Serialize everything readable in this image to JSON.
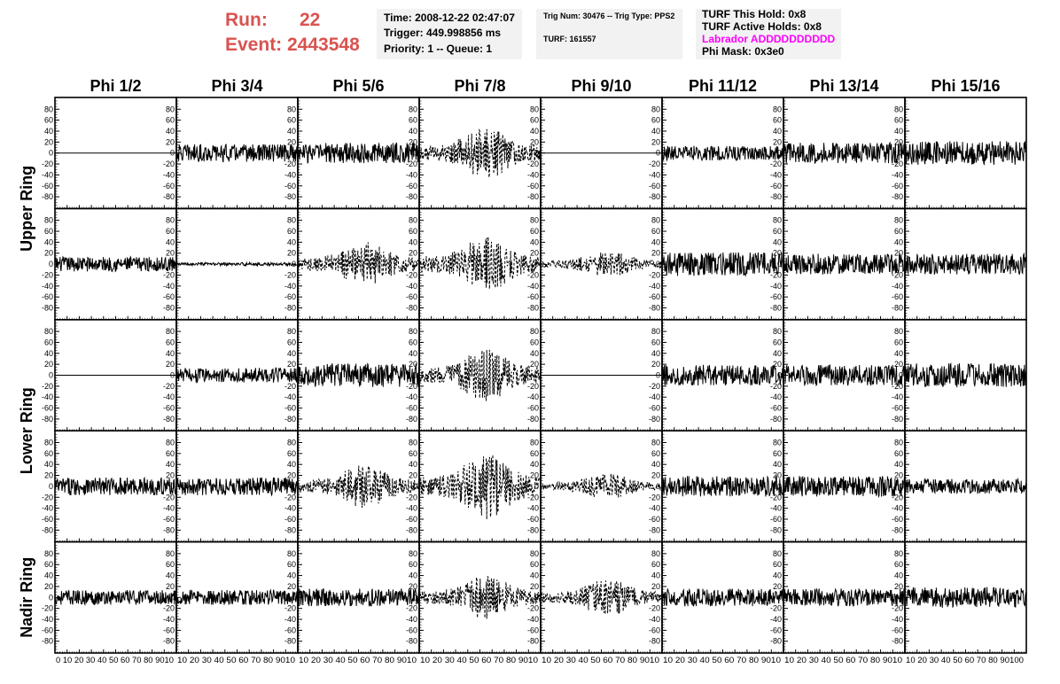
{
  "header": {
    "run_label": "Run:",
    "run_value": "22",
    "event_label": "Event:",
    "event_value": "2443548",
    "time_line": "Time: 2008-12-22 02:47:07",
    "trigger_line": "Trigger: 449.998856 ms",
    "priority_line": "Priority: 1 -- Queue: 1",
    "trig_num_line": "Trig Num: 30476 -- Trig Type: PPS2",
    "turf_line": "TURF: 161557",
    "turf_hold_line": "TURF This Hold: 0x8",
    "turf_active_line": "TURF Active Holds: 0x8",
    "labrador_line": "Labrador ADDDDDDDDDD",
    "phi_mask_line": "Phi Mask: 0x3e0",
    "labrador_color": "#ff00ff",
    "run_color": "#d9534f"
  },
  "chart_data": {
    "type": "line",
    "columns": [
      "Phi 1/2",
      "Phi 3/4",
      "Phi 5/6",
      "Phi 7/8",
      "Phi 9/10",
      "Phi 11/12",
      "Phi 13/14",
      "Phi 15/16"
    ],
    "ring_labels": [
      {
        "text": "Upper Ring",
        "rows": [
          0,
          1
        ]
      },
      {
        "text": "Lower Ring",
        "rows": [
          2,
          3
        ]
      },
      {
        "text": "Nadir Ring",
        "rows": [
          4
        ]
      }
    ],
    "ylim": [
      -95,
      95
    ],
    "yticks": [
      -80,
      -60,
      -40,
      -20,
      0,
      20,
      40,
      60,
      80
    ],
    "xlim": [
      0,
      100
    ],
    "xticks": [
      0,
      10,
      20,
      30,
      40,
      50,
      60,
      70,
      80,
      90,
      100
    ],
    "x_tick_labels_first": "0 10 20 30 40 50 60 70 80 9010",
    "x_tick_labels": "10 20 30 40 50 60 70 80 9010",
    "x_tick_labels_last": "10 20 30 40 50 60 70 80 90100",
    "line_color": "#000000",
    "samples_per_waveform": 260,
    "waveform_amplitudes": [
      [
        0,
        12,
        14,
        28,
        0,
        10,
        14,
        16
      ],
      [
        10,
        2,
        24,
        30,
        14,
        16,
        14,
        14
      ],
      [
        0,
        10,
        16,
        28,
        0,
        14,
        14,
        16
      ],
      [
        12,
        12,
        24,
        36,
        14,
        14,
        14,
        10
      ],
      [
        10,
        10,
        12,
        24,
        20,
        12,
        12,
        14
      ]
    ],
    "waveform_dashed": [
      [
        false,
        false,
        false,
        true,
        false,
        false,
        false,
        false
      ],
      [
        false,
        false,
        true,
        true,
        true,
        false,
        false,
        false
      ],
      [
        false,
        false,
        false,
        true,
        false,
        false,
        false,
        false
      ],
      [
        false,
        false,
        true,
        true,
        true,
        false,
        false,
        false
      ],
      [
        false,
        false,
        false,
        true,
        true,
        false,
        false,
        false
      ]
    ]
  }
}
